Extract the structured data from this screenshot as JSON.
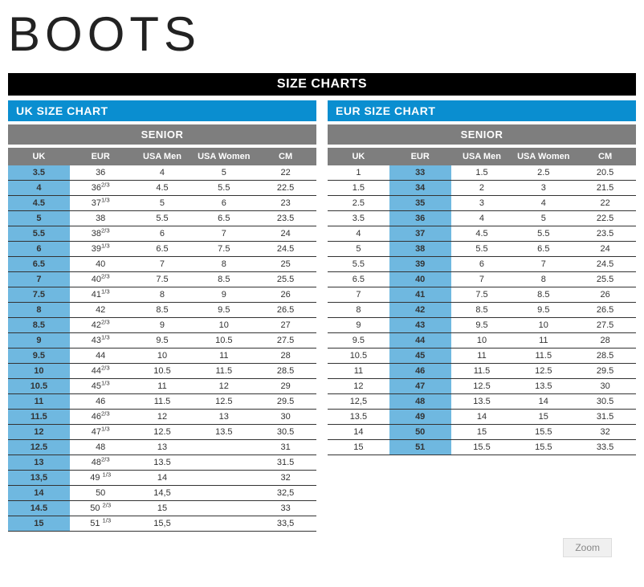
{
  "title": "BOOTS",
  "header_bar": "SIZE CHARTS",
  "zoom_label": "Zoom",
  "colors": {
    "blue_header": "#0a8ed0",
    "highlight": "#6fb8e0",
    "grey": "#7e7e7e",
    "black": "#000000",
    "white": "#ffffff",
    "row_border": "#333333"
  },
  "left_chart": {
    "title": "UK SIZE CHART",
    "section": "SENIOR",
    "highlight_col_index": 0,
    "columns": [
      "UK",
      "EUR",
      "USA Men",
      "USA Women",
      "CM"
    ],
    "rows": [
      [
        "3.5",
        "36",
        "4",
        "5",
        "22"
      ],
      [
        "4",
        "36<sup>2/3</sup>",
        "4.5",
        "5.5",
        "22.5"
      ],
      [
        "4.5",
        "37<sup>1/3</sup>",
        "5",
        "6",
        "23"
      ],
      [
        "5",
        "38",
        "5.5",
        "6.5",
        "23.5"
      ],
      [
        "5.5",
        "38<sup>2/3</sup>",
        "6",
        "7",
        "24"
      ],
      [
        "6",
        "39<sup>1/3</sup>",
        "6.5",
        "7.5",
        "24.5"
      ],
      [
        "6.5",
        "40",
        "7",
        "8",
        "25"
      ],
      [
        "7",
        "40<sup>2/3</sup>",
        "7.5",
        "8.5",
        "25.5"
      ],
      [
        "7.5",
        "41<sup>1/3</sup>",
        "8",
        "9",
        "26"
      ],
      [
        "8",
        "42",
        "8.5",
        "9.5",
        "26.5"
      ],
      [
        "8.5",
        "42<sup>2/3</sup>",
        "9",
        "10",
        "27"
      ],
      [
        "9",
        "43<sup>1/3</sup>",
        "9.5",
        "10.5",
        "27.5"
      ],
      [
        "9.5",
        "44",
        "10",
        "11",
        "28"
      ],
      [
        "10",
        "44<sup>2/3</sup>",
        "10.5",
        "11.5",
        "28.5"
      ],
      [
        "10.5",
        "45<sup>1/3</sup>",
        "11",
        "12",
        "29"
      ],
      [
        "11",
        "46",
        "11.5",
        "12.5",
        "29.5"
      ],
      [
        "11.5",
        "46<sup>2/3</sup>",
        "12",
        "13",
        "30"
      ],
      [
        "12",
        "47<sup>1/3</sup>",
        "12.5",
        "13.5",
        "30.5"
      ],
      [
        "12.5",
        "48",
        "13",
        "",
        "31"
      ],
      [
        "13",
        "48<sup>2/3</sup>",
        "13.5",
        "",
        "31.5"
      ],
      [
        "13,5",
        "49 <sup>1/3</sup>",
        "14",
        "",
        "32"
      ],
      [
        "14",
        "50",
        "14,5",
        "",
        "32,5"
      ],
      [
        "14.5",
        "50 <sup>2/3</sup>",
        "15",
        "",
        "33"
      ],
      [
        "15",
        "51 <sup>1/3</sup>",
        "15,5",
        "",
        "33,5"
      ]
    ]
  },
  "right_chart": {
    "title": "EUR SIZE CHART",
    "section": "SENIOR",
    "highlight_col_index": 1,
    "columns": [
      "UK",
      "EUR",
      "USA Men",
      "USA Women",
      "CM"
    ],
    "rows": [
      [
        "1",
        "33",
        "1.5",
        "2.5",
        "20.5"
      ],
      [
        "1.5",
        "34",
        "2",
        "3",
        "21.5"
      ],
      [
        "2.5",
        "35",
        "3",
        "4",
        "22"
      ],
      [
        "3.5",
        "36",
        "4",
        "5",
        "22.5"
      ],
      [
        "4",
        "37",
        "4.5",
        "5.5",
        "23.5"
      ],
      [
        "5",
        "38",
        "5.5",
        "6.5",
        "24"
      ],
      [
        "5.5",
        "39",
        "6",
        "7",
        "24.5"
      ],
      [
        "6.5",
        "40",
        "7",
        "8",
        "25.5"
      ],
      [
        "7",
        "41",
        "7.5",
        "8.5",
        "26"
      ],
      [
        "8",
        "42",
        "8.5",
        "9.5",
        "26.5"
      ],
      [
        "9",
        "43",
        "9.5",
        "10",
        "27.5"
      ],
      [
        "9.5",
        "44",
        "10",
        "11",
        "28"
      ],
      [
        "10.5",
        "45",
        "11",
        "11.5",
        "28.5"
      ],
      [
        "11",
        "46",
        "11.5",
        "12.5",
        "29.5"
      ],
      [
        "12",
        "47",
        "12.5",
        "13.5",
        "30"
      ],
      [
        "12,5",
        "48",
        "13.5",
        "14",
        "30.5"
      ],
      [
        "13.5",
        "49",
        "14",
        "15",
        "31.5"
      ],
      [
        "14",
        "50",
        "15",
        "15.5",
        "32"
      ],
      [
        "15",
        "51",
        "15.5",
        "15.5",
        "33.5"
      ]
    ]
  }
}
